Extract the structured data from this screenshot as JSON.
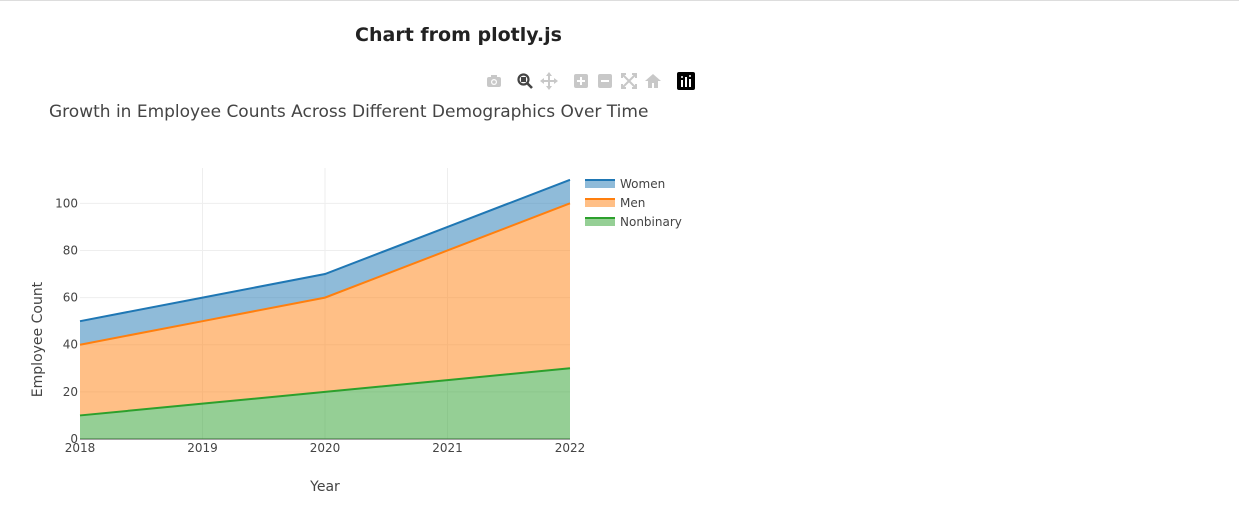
{
  "page": {
    "heading": "Chart from plotly.js"
  },
  "modebar": {
    "buttons": [
      {
        "name": "camera-icon",
        "active": false
      },
      {
        "name": "zoom-icon",
        "active": true
      },
      {
        "name": "pan-icon",
        "active": false
      },
      {
        "name": "zoom-in-icon",
        "active": false
      },
      {
        "name": "zoom-out-icon",
        "active": false
      },
      {
        "name": "autoscale-icon",
        "active": false
      },
      {
        "name": "reset-axes-icon",
        "active": false
      },
      {
        "name": "plotly-logo-icon",
        "active": false
      }
    ]
  },
  "chart_data": {
    "type": "area",
    "stacked": true,
    "title": "Growth in Employee Counts Across Different Demographics Over Time",
    "xlabel": "Year",
    "ylabel": "Employee Count",
    "x": [
      2018,
      2019,
      2020,
      2021,
      2022
    ],
    "xticks": [
      "2018",
      "2019",
      "2020",
      "2021",
      "2022"
    ],
    "yticks": [
      0,
      20,
      40,
      60,
      80,
      100
    ],
    "ylim": [
      0,
      115
    ],
    "grid": true,
    "legend_position": "right",
    "series": [
      {
        "name": "Nonbinary",
        "values": [
          10,
          15,
          20,
          25,
          30
        ],
        "color": "#2ca02c"
      },
      {
        "name": "Men",
        "values": [
          30,
          35,
          40,
          55,
          70
        ],
        "color": "#ff7f0e"
      },
      {
        "name": "Women",
        "values": [
          10,
          10,
          10,
          10,
          10
        ],
        "color": "#1f77b4"
      }
    ],
    "legend": [
      "Women",
      "Men",
      "Nonbinary"
    ]
  }
}
